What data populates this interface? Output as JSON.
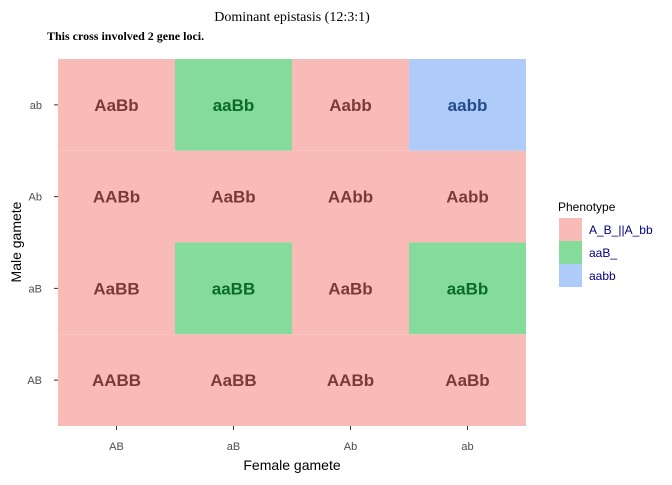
{
  "chart_data": {
    "type": "heatmap",
    "title": "Dominant epistasis (12:3:1)",
    "subtitle": "This cross involved 2 gene loci.",
    "xlabel": "Female gamete",
    "ylabel": "Male gamete",
    "x_categories": [
      "AB",
      "aB",
      "Ab",
      "ab"
    ],
    "y_categories": [
      "AB",
      "aB",
      "Ab",
      "ab"
    ],
    "cells": [
      {
        "x": "AB",
        "y": "ab",
        "genotype": "AaBb",
        "phenotype": "A_B_||A_bb"
      },
      {
        "x": "aB",
        "y": "ab",
        "genotype": "aaBb",
        "phenotype": "aaB_"
      },
      {
        "x": "Ab",
        "y": "ab",
        "genotype": "Aabb",
        "phenotype": "A_B_||A_bb"
      },
      {
        "x": "ab",
        "y": "ab",
        "genotype": "aabb",
        "phenotype": "aabb"
      },
      {
        "x": "AB",
        "y": "Ab",
        "genotype": "AABb",
        "phenotype": "A_B_||A_bb"
      },
      {
        "x": "aB",
        "y": "Ab",
        "genotype": "AaBb",
        "phenotype": "A_B_||A_bb"
      },
      {
        "x": "Ab",
        "y": "Ab",
        "genotype": "AAbb",
        "phenotype": "A_B_||A_bb"
      },
      {
        "x": "ab",
        "y": "Ab",
        "genotype": "Aabb",
        "phenotype": "A_B_||A_bb"
      },
      {
        "x": "AB",
        "y": "aB",
        "genotype": "AaBB",
        "phenotype": "A_B_||A_bb"
      },
      {
        "x": "aB",
        "y": "aB",
        "genotype": "aaBB",
        "phenotype": "aaB_"
      },
      {
        "x": "Ab",
        "y": "aB",
        "genotype": "AaBb",
        "phenotype": "A_B_||A_bb"
      },
      {
        "x": "ab",
        "y": "aB",
        "genotype": "aaBb",
        "phenotype": "aaB_"
      },
      {
        "x": "AB",
        "y": "AB",
        "genotype": "AABB",
        "phenotype": "A_B_||A_bb"
      },
      {
        "x": "aB",
        "y": "AB",
        "genotype": "AaBB",
        "phenotype": "A_B_||A_bb"
      },
      {
        "x": "Ab",
        "y": "AB",
        "genotype": "AABb",
        "phenotype": "A_B_||A_bb"
      },
      {
        "x": "ab",
        "y": "AB",
        "genotype": "AaBb",
        "phenotype": "A_B_||A_bb"
      }
    ],
    "legend": {
      "title": "Phenotype",
      "placement": "right",
      "entries": [
        {
          "name": "A_B_||A_bb",
          "fill": "#F8BBB7",
          "text_color": "#7B3A38"
        },
        {
          "name": "aaB_",
          "fill": "#85DC9A",
          "text_color": "#0A6A2A"
        },
        {
          "name": "aabb",
          "fill": "#AECBFA",
          "text_color": "#234D8A"
        }
      ]
    },
    "legend_label_color": "#000080",
    "grid": false
  }
}
